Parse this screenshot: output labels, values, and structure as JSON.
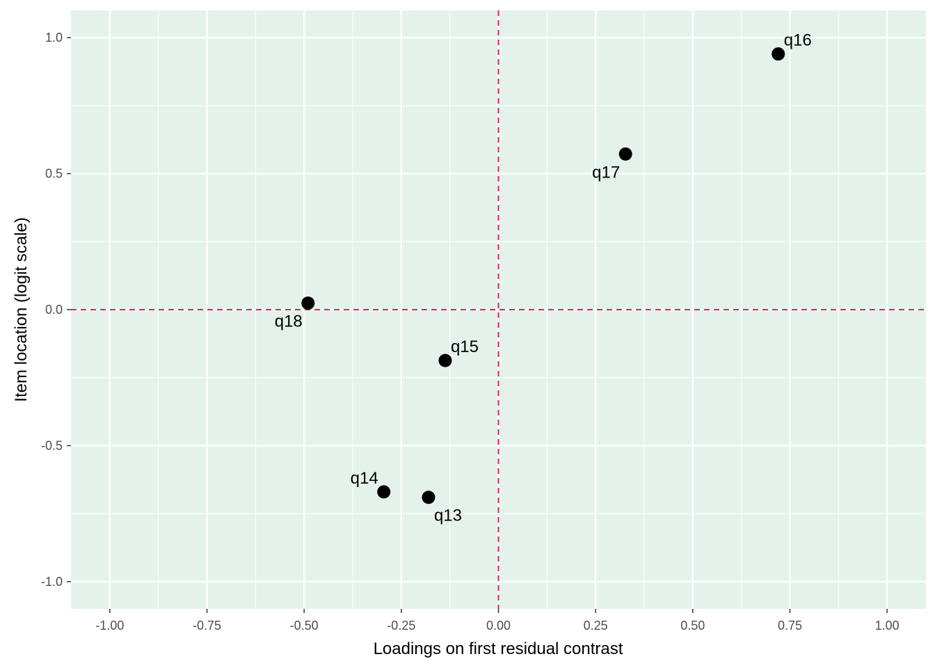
{
  "chart_data": {
    "type": "scatter",
    "title": "",
    "xlabel": "Loadings on first residual contrast",
    "ylabel": "Item location (logit scale)",
    "xlim": [
      -1.1,
      1.1
    ],
    "ylim": [
      -1.1,
      1.1
    ],
    "x_ticks": [
      -1.0,
      -0.75,
      -0.5,
      -0.25,
      0.0,
      0.25,
      0.5,
      0.75,
      1.0
    ],
    "x_tick_labels": [
      "-1.00",
      "-0.75",
      "-0.50",
      "-0.25",
      "0.00",
      "0.25",
      "0.50",
      "0.75",
      "1.00"
    ],
    "y_ticks": [
      -1.0,
      -0.5,
      0.0,
      0.5,
      1.0
    ],
    "y_tick_labels": [
      "-1.0",
      "-0.5",
      "0.0",
      "0.5",
      "1.0"
    ],
    "grid": true,
    "legend": "none",
    "reference_lines": {
      "x": 0,
      "y": 0,
      "color": "#e2245a",
      "style": "dashed"
    },
    "panel_background": "#e5f2eb",
    "point_color": "#000000",
    "points": [
      {
        "label": "q13",
        "x": -0.18,
        "y": -0.69,
        "label_pos": "below-right"
      },
      {
        "label": "q14",
        "x": -0.295,
        "y": -0.67,
        "label_pos": "above-left"
      },
      {
        "label": "q15",
        "x": -0.137,
        "y": -0.187,
        "label_pos": "above-right"
      },
      {
        "label": "q16",
        "x": 0.72,
        "y": 0.94,
        "label_pos": "above-right"
      },
      {
        "label": "q17",
        "x": 0.327,
        "y": 0.572,
        "label_pos": "below-left"
      },
      {
        "label": "q18",
        "x": -0.49,
        "y": 0.024,
        "label_pos": "below-left"
      }
    ]
  }
}
